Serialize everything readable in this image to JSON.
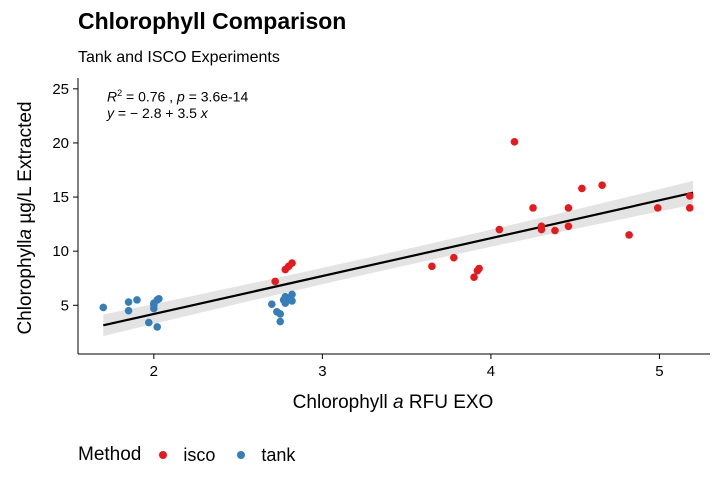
{
  "chart_data": {
    "type": "scatter",
    "title": "Chlorophyll Comparison",
    "subtitle": "Tank and ISCO Experiments",
    "xlabel": {
      "pre": "Chlorophyll ",
      "italic": "a",
      "post": " RFU EXO"
    },
    "ylabel": {
      "pre": "Chlorophyll",
      "italic": "a",
      "post": " µg/L Extracted"
    },
    "xlim": [
      1.55,
      5.3
    ],
    "ylim": [
      0.5,
      26
    ],
    "xticks": [
      2,
      3,
      4,
      5
    ],
    "yticks": [
      5,
      10,
      15,
      20,
      25
    ],
    "annotation": {
      "r2_label": "R",
      "r2_sup": "2",
      "r2_value": " = 0.76 ,  ",
      "p_label": "p",
      "p_value": " = 3.6e-14",
      "eq_y": "y",
      "eq_body": " = − 2.8 + 3.5 ",
      "eq_x": "x"
    },
    "regression": {
      "intercept": -2.8,
      "slope": 3.5,
      "x_range": [
        1.7,
        5.2
      ],
      "band_halfwidth": [
        1.0,
        0.75,
        1.1
      ]
    },
    "legend": {
      "title": "Method",
      "position": "bottom"
    },
    "series": [
      {
        "name": "isco",
        "color": "#E41A1C",
        "points": [
          [
            2.72,
            7.2
          ],
          [
            2.78,
            8.3
          ],
          [
            2.8,
            8.6
          ],
          [
            2.82,
            8.9
          ],
          [
            3.65,
            8.6
          ],
          [
            3.78,
            9.4
          ],
          [
            3.9,
            7.6
          ],
          [
            3.92,
            8.2
          ],
          [
            3.93,
            8.4
          ],
          [
            4.05,
            12.0
          ],
          [
            4.14,
            20.1
          ],
          [
            4.25,
            14.0
          ],
          [
            4.3,
            12.3
          ],
          [
            4.3,
            12.0
          ],
          [
            4.38,
            11.9
          ],
          [
            4.46,
            14.0
          ],
          [
            4.46,
            12.3
          ],
          [
            4.54,
            15.8
          ],
          [
            4.66,
            16.1
          ],
          [
            4.82,
            11.5
          ],
          [
            4.99,
            14.0
          ],
          [
            5.18,
            15.1
          ],
          [
            5.18,
            14.0
          ]
        ]
      },
      {
        "name": "tank",
        "color": "#377EB8",
        "points": [
          [
            1.7,
            4.8
          ],
          [
            1.85,
            5.3
          ],
          [
            1.85,
            4.5
          ],
          [
            1.9,
            5.5
          ],
          [
            1.97,
            3.4
          ],
          [
            2.0,
            5.2
          ],
          [
            2.0,
            5.0
          ],
          [
            2.0,
            4.7
          ],
          [
            2.02,
            5.5
          ],
          [
            2.02,
            3.0
          ],
          [
            2.03,
            5.6
          ],
          [
            2.7,
            5.1
          ],
          [
            2.73,
            4.4
          ],
          [
            2.75,
            3.5
          ],
          [
            2.75,
            4.2
          ],
          [
            2.77,
            5.5
          ],
          [
            2.78,
            5.8
          ],
          [
            2.78,
            5.2
          ],
          [
            2.8,
            5.6
          ],
          [
            2.82,
            5.4
          ],
          [
            2.82,
            6.0
          ]
        ]
      }
    ]
  }
}
